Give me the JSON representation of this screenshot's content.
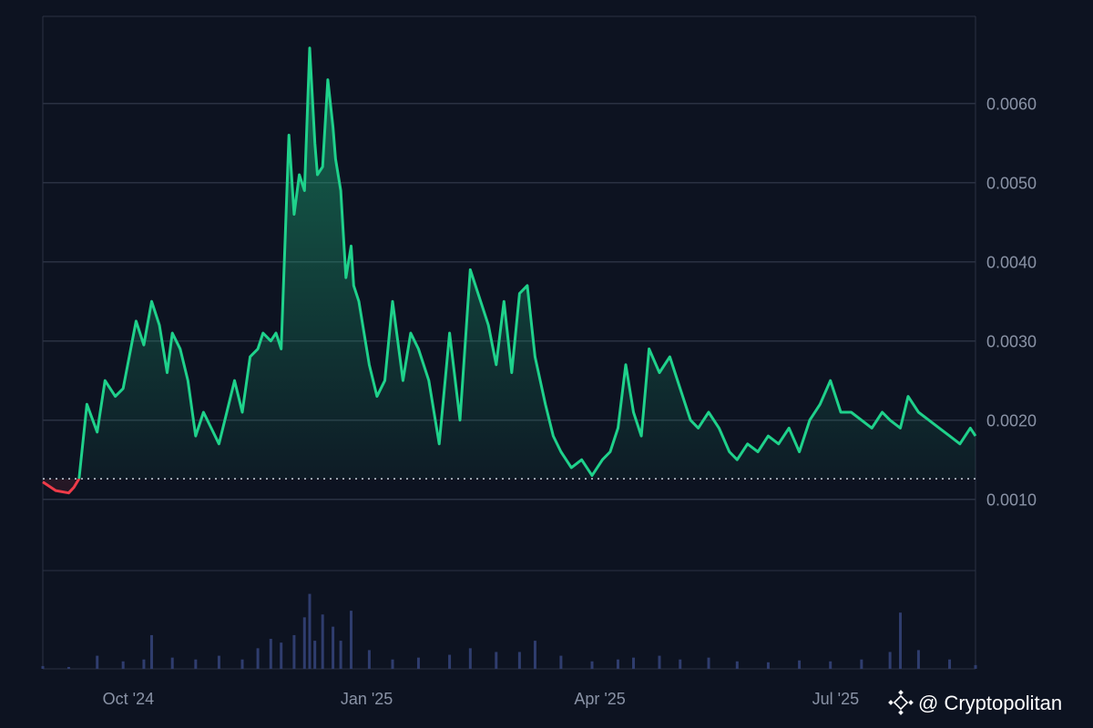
{
  "chart_data": {
    "type": "area",
    "title": "",
    "xlabel": "",
    "ylabel": "",
    "x_tick_labels": [
      "Oct '24",
      "Jan '25",
      "Apr '25",
      "Jul '25"
    ],
    "y_ticks": [
      "0.0010",
      "0.0020",
      "0.0030",
      "0.0040",
      "0.0050",
      "0.0060"
    ],
    "ylim": [
      0.0001,
      0.0071
    ],
    "baseline": 0.00126,
    "grid": "horizontal",
    "colors": {
      "up": "#1fd18b",
      "down": "#ef3b49",
      "volume": "#2f3d6e"
    },
    "price_series": {
      "name": "",
      "dates": [
        "2024-08-29",
        "2024-09-03",
        "2024-09-08",
        "2024-09-10",
        "2024-09-12",
        "2024-09-15",
        "2024-09-19",
        "2024-09-22",
        "2024-09-26",
        "2024-09-29",
        "2024-10-04",
        "2024-10-07",
        "2024-10-10",
        "2024-10-13",
        "2024-10-16",
        "2024-10-18",
        "2024-10-21",
        "2024-10-24",
        "2024-10-27",
        "2024-10-30",
        "2024-11-02",
        "2024-11-05",
        "2024-11-08",
        "2024-11-11",
        "2024-11-14",
        "2024-11-17",
        "2024-11-20",
        "2024-11-22",
        "2024-11-25",
        "2024-11-27",
        "2024-11-29",
        "2024-12-02",
        "2024-12-04",
        "2024-12-06",
        "2024-12-08",
        "2024-12-10",
        "2024-12-12",
        "2024-12-13",
        "2024-12-15",
        "2024-12-17",
        "2024-12-19",
        "2024-12-20",
        "2024-12-22",
        "2024-12-24",
        "2024-12-26",
        "2024-12-27",
        "2024-12-29",
        "2024-12-31",
        "2025-01-02",
        "2025-01-05",
        "2025-01-08",
        "2025-01-11",
        "2025-01-15",
        "2025-01-18",
        "2025-01-21",
        "2025-01-25",
        "2025-01-29",
        "2025-02-02",
        "2025-02-06",
        "2025-02-10",
        "2025-02-14",
        "2025-02-17",
        "2025-02-20",
        "2025-02-23",
        "2025-02-26",
        "2025-03-01",
        "2025-03-04",
        "2025-03-07",
        "2025-03-11",
        "2025-03-14",
        "2025-03-17",
        "2025-03-21",
        "2025-03-25",
        "2025-03-29",
        "2025-04-02",
        "2025-04-05",
        "2025-04-08",
        "2025-04-11",
        "2025-04-14",
        "2025-04-17",
        "2025-04-20",
        "2025-04-24",
        "2025-04-28",
        "2025-05-02",
        "2025-05-06",
        "2025-05-09",
        "2025-05-13",
        "2025-05-17",
        "2025-05-21",
        "2025-05-24",
        "2025-05-28",
        "2025-06-01",
        "2025-06-05",
        "2025-06-09",
        "2025-06-13",
        "2025-06-17",
        "2025-06-21",
        "2025-06-25",
        "2025-06-29",
        "2025-07-03",
        "2025-07-07",
        "2025-07-11",
        "2025-07-15",
        "2025-07-19",
        "2025-07-22",
        "2025-07-26",
        "2025-07-29",
        "2025-08-02",
        "2025-08-06",
        "2025-08-10",
        "2025-08-14",
        "2025-08-18",
        "2025-08-22",
        "2025-08-24"
      ],
      "values": [
        0.00122,
        0.00111,
        0.00108,
        0.00115,
        0.00126,
        0.0022,
        0.00185,
        0.0025,
        0.0023,
        0.0024,
        0.00325,
        0.00295,
        0.0035,
        0.0032,
        0.0026,
        0.0031,
        0.0029,
        0.0025,
        0.0018,
        0.0021,
        0.0019,
        0.0017,
        0.0021,
        0.0025,
        0.0021,
        0.0028,
        0.0029,
        0.0031,
        0.003,
        0.0031,
        0.0029,
        0.0056,
        0.0046,
        0.0051,
        0.0049,
        0.0067,
        0.0055,
        0.0051,
        0.0052,
        0.0063,
        0.0057,
        0.0053,
        0.0049,
        0.0038,
        0.0042,
        0.0037,
        0.0035,
        0.0031,
        0.0027,
        0.0023,
        0.0025,
        0.0035,
        0.0025,
        0.0031,
        0.0029,
        0.0025,
        0.0017,
        0.0031,
        0.002,
        0.0039,
        0.0035,
        0.0032,
        0.0027,
        0.0035,
        0.0026,
        0.0036,
        0.0037,
        0.0028,
        0.0022,
        0.0018,
        0.0016,
        0.0014,
        0.0015,
        0.0013,
        0.0015,
        0.0016,
        0.0019,
        0.0027,
        0.0021,
        0.0018,
        0.0029,
        0.0026,
        0.0028,
        0.0024,
        0.002,
        0.0019,
        0.0021,
        0.0019,
        0.0016,
        0.0015,
        0.0017,
        0.0016,
        0.0018,
        0.0017,
        0.0019,
        0.0016,
        0.002,
        0.0022,
        0.0025,
        0.0021,
        0.0021,
        0.002,
        0.0019,
        0.0021,
        0.002,
        0.0019,
        0.0023,
        0.0021,
        0.002,
        0.0019,
        0.0018,
        0.0017,
        0.0019,
        0.0018
      ]
    },
    "volume_series": {
      "name": "",
      "dates": [
        "2024-08-29",
        "2024-09-08",
        "2024-09-19",
        "2024-09-29",
        "2024-10-07",
        "2024-10-10",
        "2024-10-18",
        "2024-10-27",
        "2024-11-05",
        "2024-11-14",
        "2024-11-20",
        "2024-11-25",
        "2024-11-29",
        "2024-12-04",
        "2024-12-08",
        "2024-12-10",
        "2024-12-12",
        "2024-12-15",
        "2024-12-19",
        "2024-12-22",
        "2024-12-26",
        "2025-01-02",
        "2025-01-11",
        "2025-01-21",
        "2025-02-02",
        "2025-02-10",
        "2025-02-20",
        "2025-03-01",
        "2025-03-07",
        "2025-03-17",
        "2025-03-29",
        "2025-04-08",
        "2025-04-14",
        "2025-04-24",
        "2025-05-02",
        "2025-05-13",
        "2025-05-24",
        "2025-06-05",
        "2025-06-17",
        "2025-06-29",
        "2025-07-11",
        "2025-07-22",
        "2025-07-26",
        "2025-08-02",
        "2025-08-14",
        "2025-08-24"
      ],
      "values": [
        3,
        2,
        14,
        8,
        10,
        36,
        12,
        10,
        14,
        10,
        22,
        32,
        28,
        36,
        55,
        80,
        30,
        58,
        45,
        30,
        62,
        20,
        10,
        12,
        15,
        22,
        18,
        18,
        30,
        14,
        8,
        10,
        12,
        14,
        10,
        12,
        8,
        7,
        9,
        8,
        10,
        18,
        60,
        20,
        10,
        4
      ]
    }
  },
  "watermark": {
    "icon": "binance-diamond-icon",
    "text": "@ Cryptopolitan"
  }
}
